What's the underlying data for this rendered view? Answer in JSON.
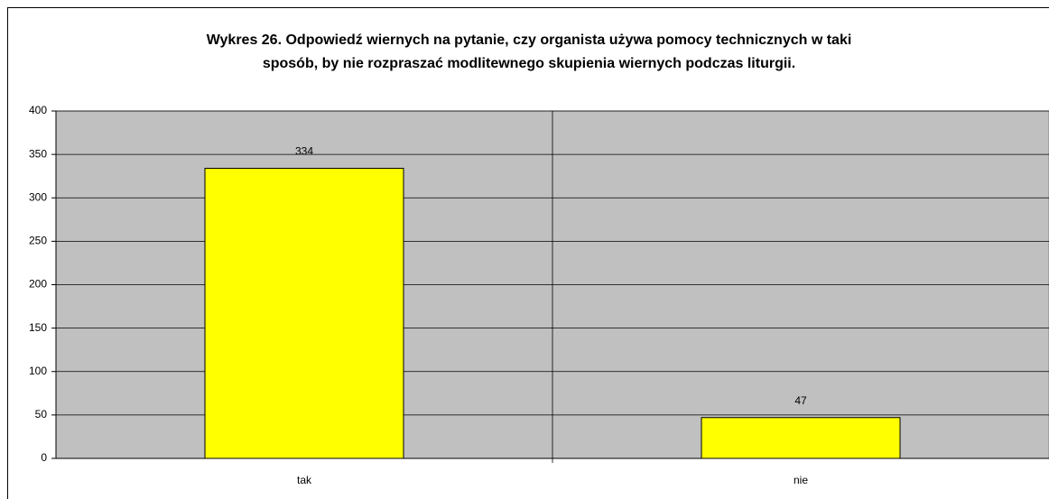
{
  "chart_data": {
    "type": "bar",
    "title": [
      "Wykres 26. Odpowiedź wiernych na pytanie, czy organista używa pomocy technicznych w taki",
      "sposób, by nie rozpraszać modlitewnego skupienia wiernych podczas liturgii."
    ],
    "categories": [
      "tak",
      "nie"
    ],
    "values": [
      334,
      47
    ],
    "color": "#ffff00",
    "ylim": [
      0,
      400
    ],
    "yticks": [
      0,
      50,
      100,
      150,
      200,
      250,
      300,
      350,
      400
    ],
    "grid": true
  }
}
